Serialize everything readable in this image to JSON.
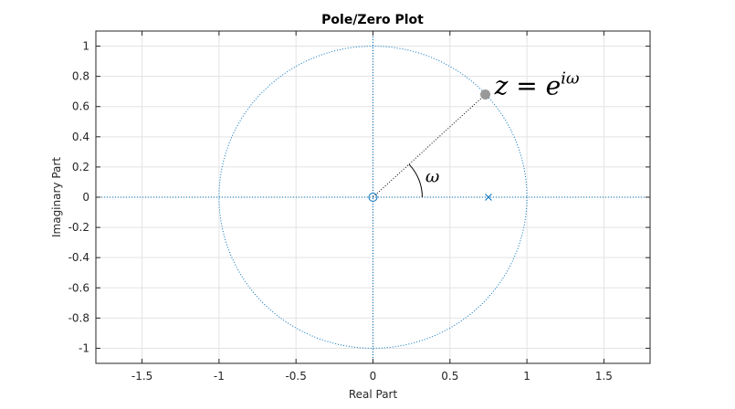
{
  "chart_data": {
    "type": "scatter",
    "title": "Pole/Zero Plot",
    "xlabel": "Real Part",
    "ylabel": "Imaginary Part",
    "xlim": [
      -1.8,
      1.8
    ],
    "ylim": [
      -1.1,
      1.1
    ],
    "xticks": [
      -1.5,
      -1,
      -0.5,
      0,
      0.5,
      1,
      1.5
    ],
    "xtick_labels": [
      "-1.5",
      "-1",
      "-0.5",
      "0",
      "0.5",
      "1",
      "1.5"
    ],
    "yticks": [
      -1,
      -0.8,
      -0.6,
      -0.4,
      -0.2,
      0,
      0.2,
      0.4,
      0.6,
      0.8,
      1
    ],
    "ytick_labels": [
      "-1",
      "-0.8",
      "-0.6",
      "-0.4",
      "-0.2",
      "0",
      "0.2",
      "0.4",
      "0.6",
      "0.8",
      "1"
    ],
    "grid": true,
    "unit_circle_radius": 1,
    "zeros": [
      {
        "x": 0,
        "y": 0
      }
    ],
    "poles": [
      {
        "x": 0.75,
        "y": 0
      }
    ],
    "point_on_circle": {
      "x": 0.73,
      "y": 0.68
    },
    "annotations": {
      "omega": "ω",
      "z_equation_base": "z = e",
      "z_equation_exponent": "iω"
    },
    "colors": {
      "marker_blue": "#0072BD",
      "point_gray": "#999999",
      "grid": "#e3e3e3",
      "axes_frame": "#262626"
    }
  }
}
